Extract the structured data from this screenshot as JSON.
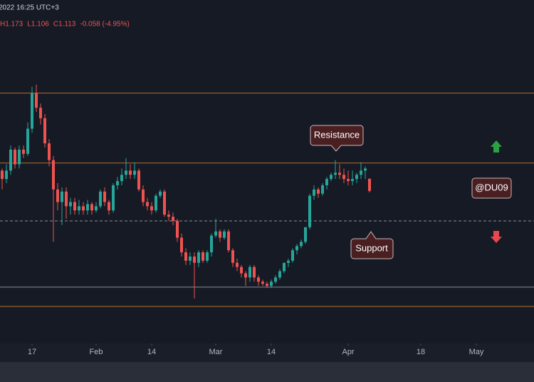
{
  "chart_data": {
    "type": "candlestick",
    "header": {
      "time": "2022 16:25 UTC+3",
      "ohlc": [
        "H1.173",
        "L1.106",
        "C1.113",
        "-0.058 (-4.95%)"
      ]
    },
    "x": [
      -7,
      -6,
      -5,
      -4,
      -3,
      -2,
      -1,
      0,
      1,
      2,
      3,
      4,
      5,
      6,
      7,
      8,
      9,
      10,
      11,
      12,
      13,
      14,
      15,
      16,
      17,
      18,
      19,
      20,
      21,
      22,
      23,
      24,
      25,
      26,
      27,
      28,
      29,
      30,
      31,
      32,
      33,
      34,
      35,
      36,
      37,
      38,
      39,
      40,
      41,
      42,
      43,
      44,
      45,
      46,
      47,
      48,
      49,
      50,
      51,
      52,
      53,
      54,
      55,
      56,
      57,
      58,
      59,
      60,
      61,
      62,
      63,
      64,
      65,
      66,
      67,
      68,
      69,
      70,
      71,
      72,
      73,
      74,
      75,
      76,
      77,
      78,
      79
    ],
    "open": [
      1.21,
      1.17,
      1.21,
      1.31,
      1.24,
      1.31,
      1.29,
      1.41,
      1.58,
      1.51,
      1.46,
      1.34,
      1.26,
      1.12,
      1.06,
      1.11,
      1.04,
      1.06,
      1.02,
      1.04,
      1.02,
      1.05,
      1.02,
      1.04,
      1.11,
      1.06,
      1.02,
      1.14,
      1.16,
      1.19,
      1.21,
      1.19,
      1.21,
      1.12,
      1.06,
      1.04,
      1.02,
      1.09,
      1.11,
      1.0,
      0.99,
      0.97,
      0.89,
      0.82,
      0.78,
      0.8,
      0.77,
      0.82,
      0.78,
      0.82,
      0.9,
      0.92,
      0.89,
      0.92,
      0.83,
      0.77,
      0.75,
      0.72,
      0.7,
      0.75,
      0.7,
      0.68,
      0.67,
      0.66,
      0.68,
      0.7,
      0.73,
      0.77,
      0.78,
      0.83,
      0.85,
      0.87,
      0.94,
      1.09,
      1.12,
      1.1,
      1.14,
      1.17,
      1.19,
      1.2,
      1.19,
      1.17,
      1.16,
      1.17,
      1.19,
      1.21,
      1.171
    ],
    "high": [
      1.22,
      1.24,
      1.33,
      1.32,
      1.33,
      1.33,
      1.44,
      1.61,
      1.62,
      1.53,
      1.48,
      1.36,
      1.28,
      1.15,
      1.13,
      1.13,
      1.08,
      1.08,
      1.07,
      1.06,
      1.07,
      1.06,
      1.06,
      1.12,
      1.13,
      1.07,
      1.15,
      1.18,
      1.22,
      1.27,
      1.24,
      1.25,
      1.22,
      1.14,
      1.08,
      1.06,
      1.1,
      1.12,
      1.12,
      1.02,
      1.01,
      0.98,
      0.91,
      0.84,
      0.82,
      0.82,
      0.83,
      0.83,
      0.83,
      0.91,
      0.98,
      0.93,
      0.93,
      0.93,
      0.84,
      0.79,
      0.76,
      0.73,
      0.76,
      0.76,
      0.71,
      0.69,
      0.68,
      0.69,
      0.71,
      0.74,
      0.77,
      0.79,
      0.84,
      0.86,
      0.88,
      0.94,
      1.1,
      1.14,
      1.13,
      1.15,
      1.18,
      1.2,
      1.26,
      1.24,
      1.22,
      1.21,
      1.21,
      1.2,
      1.25,
      1.23,
      1.173
    ],
    "low": [
      1.12,
      1.15,
      1.19,
      1.22,
      1.22,
      1.27,
      1.28,
      1.39,
      1.49,
      1.43,
      1.32,
      1.23,
      0.87,
      1.02,
      0.95,
      0.98,
      1.0,
      1.0,
      1.0,
      1.0,
      1.0,
      1.0,
      1.01,
      1.03,
      1.04,
      1.0,
      1.01,
      1.12,
      1.14,
      1.17,
      1.17,
      1.17,
      1.11,
      1.04,
      1.02,
      1.0,
      1.01,
      1.08,
      0.99,
      0.97,
      0.95,
      0.87,
      0.8,
      0.76,
      0.76,
      0.6,
      0.75,
      0.77,
      0.77,
      0.8,
      0.89,
      0.87,
      0.88,
      0.82,
      0.75,
      0.73,
      0.7,
      0.66,
      0.68,
      0.68,
      0.66,
      0.66,
      0.65,
      0.65,
      0.67,
      0.69,
      0.72,
      0.75,
      0.77,
      0.81,
      0.84,
      0.86,
      0.93,
      1.07,
      1.08,
      1.09,
      1.12,
      1.16,
      1.17,
      1.17,
      1.15,
      1.14,
      1.14,
      1.15,
      1.17,
      1.17,
      1.106
    ],
    "close": [
      1.17,
      1.21,
      1.31,
      1.24,
      1.31,
      1.29,
      1.41,
      1.58,
      1.51,
      1.46,
      1.34,
      1.26,
      1.12,
      1.06,
      1.11,
      1.04,
      1.06,
      1.02,
      1.04,
      1.02,
      1.05,
      1.02,
      1.04,
      1.11,
      1.06,
      1.02,
      1.14,
      1.16,
      1.19,
      1.21,
      1.19,
      1.21,
      1.12,
      1.06,
      1.04,
      1.02,
      1.09,
      1.11,
      1.0,
      0.99,
      0.97,
      0.89,
      0.82,
      0.78,
      0.8,
      0.77,
      0.82,
      0.78,
      0.82,
      0.9,
      0.92,
      0.89,
      0.92,
      0.83,
      0.77,
      0.75,
      0.72,
      0.7,
      0.75,
      0.7,
      0.68,
      0.67,
      0.66,
      0.68,
      0.7,
      0.73,
      0.77,
      0.78,
      0.83,
      0.85,
      0.87,
      0.94,
      1.09,
      1.12,
      1.1,
      1.14,
      1.17,
      1.19,
      1.2,
      1.19,
      1.17,
      1.16,
      1.17,
      1.19,
      1.21,
      1.22,
      1.113
    ],
    "up_color": "#26a69a",
    "down_color": "#ef5350",
    "xlim": [
      -7.5,
      117.5
    ],
    "ylim": [
      0.385,
      2.024
    ],
    "xticks": [
      {
        "value": 0,
        "label": "17"
      },
      {
        "value": 15,
        "label": "Feb"
      },
      {
        "value": 28,
        "label": "14"
      },
      {
        "value": 43,
        "label": "Mar"
      },
      {
        "value": 56,
        "label": "14"
      },
      {
        "value": 74,
        "label": "Apr"
      },
      {
        "value": 91,
        "label": "18"
      },
      {
        "value": 104,
        "label": "May"
      }
    ],
    "levels": [
      {
        "value": 1.58,
        "color": "#b5702f",
        "style": "solid"
      },
      {
        "value": 1.246,
        "color": "#b5702f",
        "style": "solid"
      },
      {
        "value": 0.97,
        "color": "#8a8e99",
        "style": "dashed"
      },
      {
        "value": 0.654,
        "color": "#8a8e99",
        "style": "solid"
      },
      {
        "value": 0.562,
        "color": "#b5702f",
        "style": "solid"
      }
    ],
    "annotations": {
      "resistance": "Resistance",
      "support": "Support",
      "watermark": "@DU09"
    }
  }
}
